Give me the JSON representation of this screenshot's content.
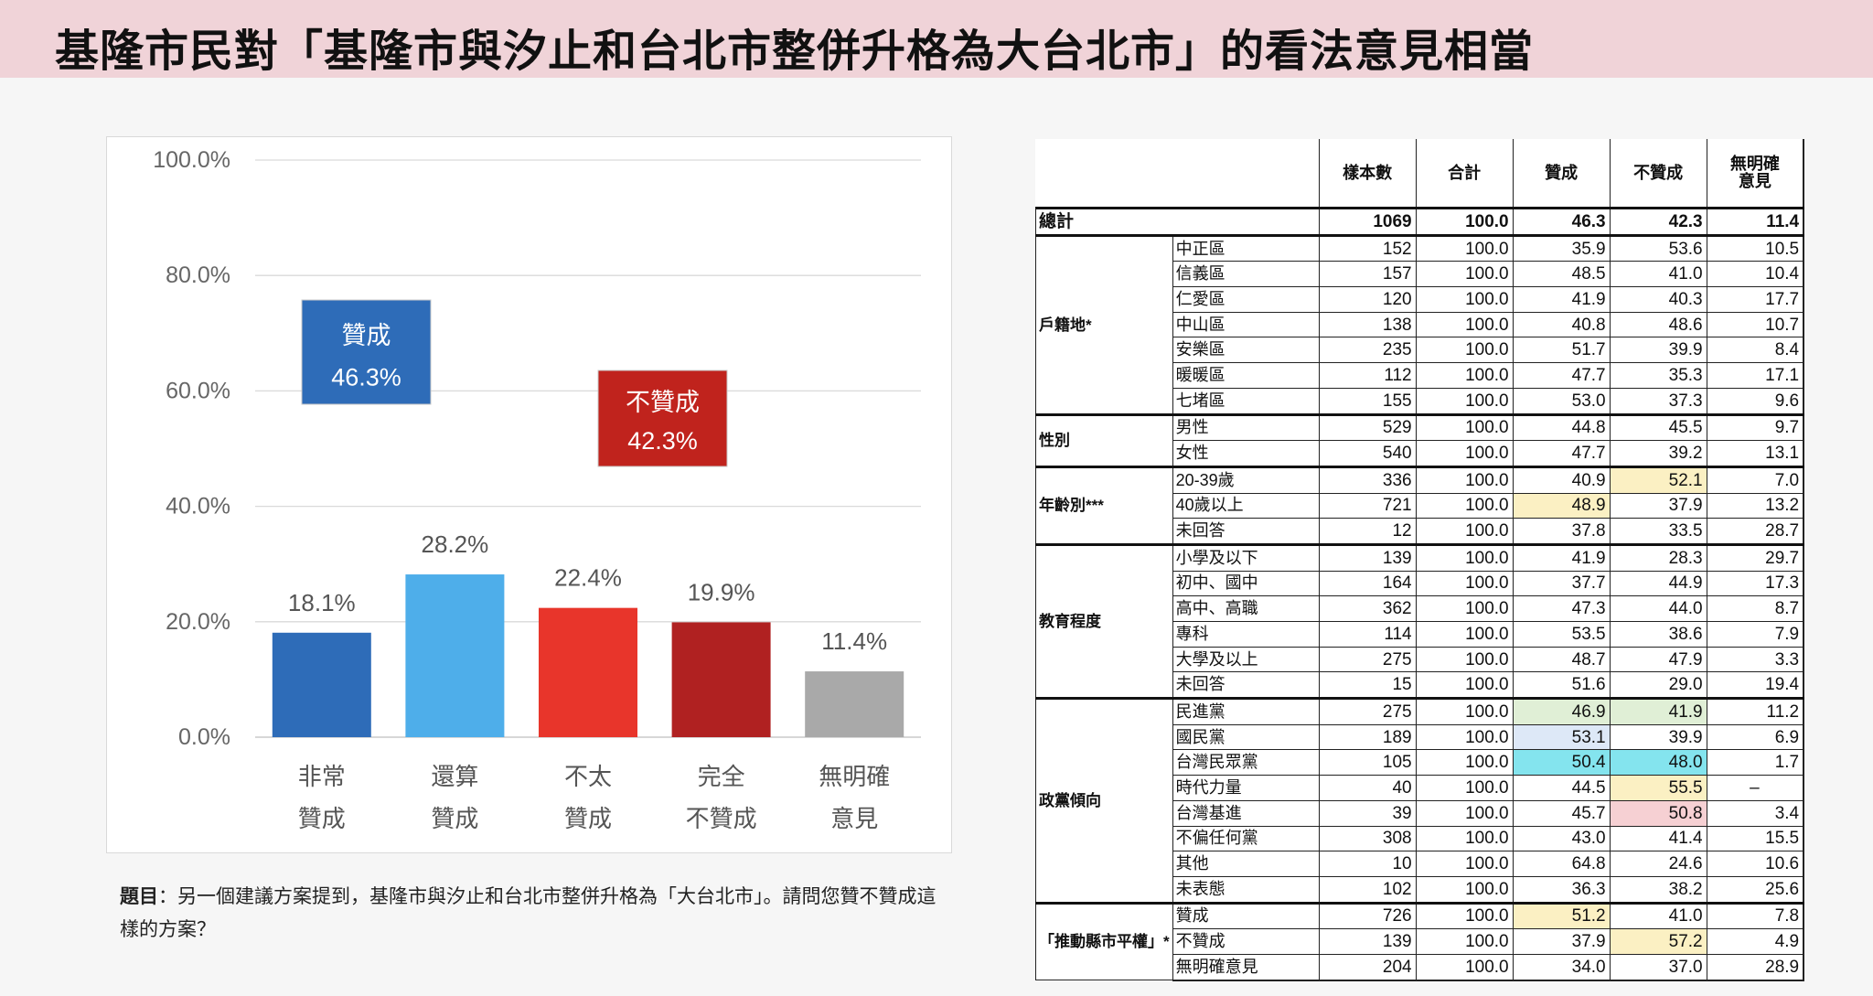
{
  "header": {
    "title": "基隆市民對「基隆市與汐止和台北市整併升格為大台北市」的看法意見相當"
  },
  "chart_data": {
    "type": "bar",
    "categories": [
      [
        "非常",
        "贊成"
      ],
      [
        "還算",
        "贊成"
      ],
      [
        "不太",
        "贊成"
      ],
      [
        "完全",
        "不贊成"
      ],
      [
        "無明確",
        "意見"
      ]
    ],
    "values": [
      18.1,
      28.2,
      22.4,
      19.9,
      11.4
    ],
    "value_labels": [
      "18.1%",
      "28.2%",
      "22.4%",
      "19.9%",
      "11.4%"
    ],
    "colors": [
      "#2e6cb8",
      "#4eaeea",
      "#e8352b",
      "#b02121",
      "#a9a9a9"
    ],
    "ylim": [
      0,
      100
    ],
    "y_ticks": [
      0,
      20,
      40,
      60,
      80,
      100
    ],
    "y_tick_labels": [
      "0.0%",
      "20.0%",
      "40.0%",
      "60.0%",
      "80.0%",
      "100.0%"
    ],
    "grid": true,
    "annotations": [
      {
        "label": "贊成",
        "value": "46.3%",
        "color": "#2e6cb8"
      },
      {
        "label": "不贊成",
        "value": "42.3%",
        "color": "#c0231d"
      }
    ]
  },
  "question": {
    "label": "題目",
    "text": "：另一個建議方案提到，基隆市與汐止和台北市整併升格為「大台北市」。請問您贊不贊成這樣的方案？"
  },
  "table": {
    "columns": [
      "樣本數",
      "合計",
      "贊成",
      "不贊成",
      [
        "無明確",
        "意見"
      ]
    ],
    "total": {
      "label": "總計",
      "values": [
        "1069",
        "100.0",
        "46.3",
        "42.3",
        "11.4"
      ]
    },
    "groups": [
      {
        "label": "戶籍地*",
        "rows": [
          {
            "label": "中正區",
            "values": [
              "152",
              "100.0",
              "35.9",
              "53.6",
              "10.5"
            ]
          },
          {
            "label": "信義區",
            "values": [
              "157",
              "100.0",
              "48.5",
              "41.0",
              "10.4"
            ]
          },
          {
            "label": "仁愛區",
            "values": [
              "120",
              "100.0",
              "41.9",
              "40.3",
              "17.7"
            ]
          },
          {
            "label": "中山區",
            "values": [
              "138",
              "100.0",
              "40.8",
              "48.6",
              "10.7"
            ]
          },
          {
            "label": "安樂區",
            "values": [
              "235",
              "100.0",
              "51.7",
              "39.9",
              "8.4"
            ]
          },
          {
            "label": "暖暖區",
            "values": [
              "112",
              "100.0",
              "47.7",
              "35.3",
              "17.1"
            ]
          },
          {
            "label": "七堵區",
            "values": [
              "155",
              "100.0",
              "53.0",
              "37.3",
              "9.6"
            ]
          }
        ]
      },
      {
        "label": "性別",
        "rows": [
          {
            "label": "男性",
            "values": [
              "529",
              "100.0",
              "44.8",
              "45.5",
              "9.7"
            ]
          },
          {
            "label": "女性",
            "values": [
              "540",
              "100.0",
              "47.7",
              "39.2",
              "13.1"
            ]
          }
        ]
      },
      {
        "label": "年齡別***",
        "rows": [
          {
            "label": "20-39歲",
            "values": [
              "336",
              "100.0",
              "40.9",
              "52.1",
              "7.0"
            ],
            "hl": [
              null,
              null,
              null,
              "#fbf0c3",
              null
            ]
          },
          {
            "label": "40歲以上",
            "values": [
              "721",
              "100.0",
              "48.9",
              "37.9",
              "13.2"
            ],
            "hl": [
              null,
              null,
              "#fbf0c3",
              null,
              null
            ]
          },
          {
            "label": "未回答",
            "values": [
              "12",
              "100.0",
              "37.8",
              "33.5",
              "28.7"
            ]
          }
        ]
      },
      {
        "label": "教育程度",
        "rows": [
          {
            "label": "小學及以下",
            "values": [
              "139",
              "100.0",
              "41.9",
              "28.3",
              "29.7"
            ]
          },
          {
            "label": "初中、國中",
            "values": [
              "164",
              "100.0",
              "37.7",
              "44.9",
              "17.3"
            ]
          },
          {
            "label": "高中、高職",
            "values": [
              "362",
              "100.0",
              "47.3",
              "44.0",
              "8.7"
            ]
          },
          {
            "label": "專科",
            "values": [
              "114",
              "100.0",
              "53.5",
              "38.6",
              "7.9"
            ]
          },
          {
            "label": "大學及以上",
            "values": [
              "275",
              "100.0",
              "48.7",
              "47.9",
              "3.3"
            ]
          },
          {
            "label": "未回答",
            "values": [
              "15",
              "100.0",
              "51.6",
              "29.0",
              "19.4"
            ]
          }
        ]
      },
      {
        "label": "政黨傾向",
        "rows": [
          {
            "label": "民進黨",
            "values": [
              "275",
              "100.0",
              "46.9",
              "41.9",
              "11.2"
            ],
            "hl": [
              null,
              null,
              "#e0efd6",
              "#e0efd6",
              null
            ]
          },
          {
            "label": "國民黨",
            "values": [
              "189",
              "100.0",
              "53.1",
              "39.9",
              "6.9"
            ],
            "hl": [
              null,
              null,
              "#dde8f7",
              null,
              null
            ]
          },
          {
            "label": "台灣民眾黨",
            "values": [
              "105",
              "100.0",
              "50.4",
              "48.0",
              "1.7"
            ],
            "hl": [
              null,
              null,
              "#84e4ee",
              "#84e4ee",
              null
            ]
          },
          {
            "label": "時代力量",
            "values": [
              "40",
              "100.0",
              "44.5",
              "55.5",
              "–"
            ],
            "hl": [
              null,
              null,
              null,
              "#fbf0c3",
              null
            ]
          },
          {
            "label": "台灣基進",
            "values": [
              "39",
              "100.0",
              "45.7",
              "50.8",
              "3.4"
            ],
            "hl": [
              null,
              null,
              null,
              "#f6d0d3",
              null
            ]
          },
          {
            "label": "不偏任何黨",
            "values": [
              "308",
              "100.0",
              "43.0",
              "41.4",
              "15.5"
            ]
          },
          {
            "label": "其他",
            "values": [
              "10",
              "100.0",
              "64.8",
              "24.6",
              "10.6"
            ]
          },
          {
            "label": "未表態",
            "values": [
              "102",
              "100.0",
              "36.3",
              "38.2",
              "25.6"
            ]
          }
        ]
      },
      {
        "label": "「推動縣市平權」*",
        "rows": [
          {
            "label": "贊成",
            "values": [
              "726",
              "100.0",
              "51.2",
              "41.0",
              "7.8"
            ],
            "hl": [
              null,
              null,
              "#fbf0c3",
              null,
              null
            ]
          },
          {
            "label": "不贊成",
            "values": [
              "139",
              "100.0",
              "37.9",
              "57.2",
              "4.9"
            ],
            "hl": [
              null,
              null,
              null,
              "#fbf0c3",
              null
            ]
          },
          {
            "label": "無明確意見",
            "values": [
              "204",
              "100.0",
              "34.0",
              "37.0",
              "28.9"
            ]
          }
        ]
      }
    ]
  }
}
